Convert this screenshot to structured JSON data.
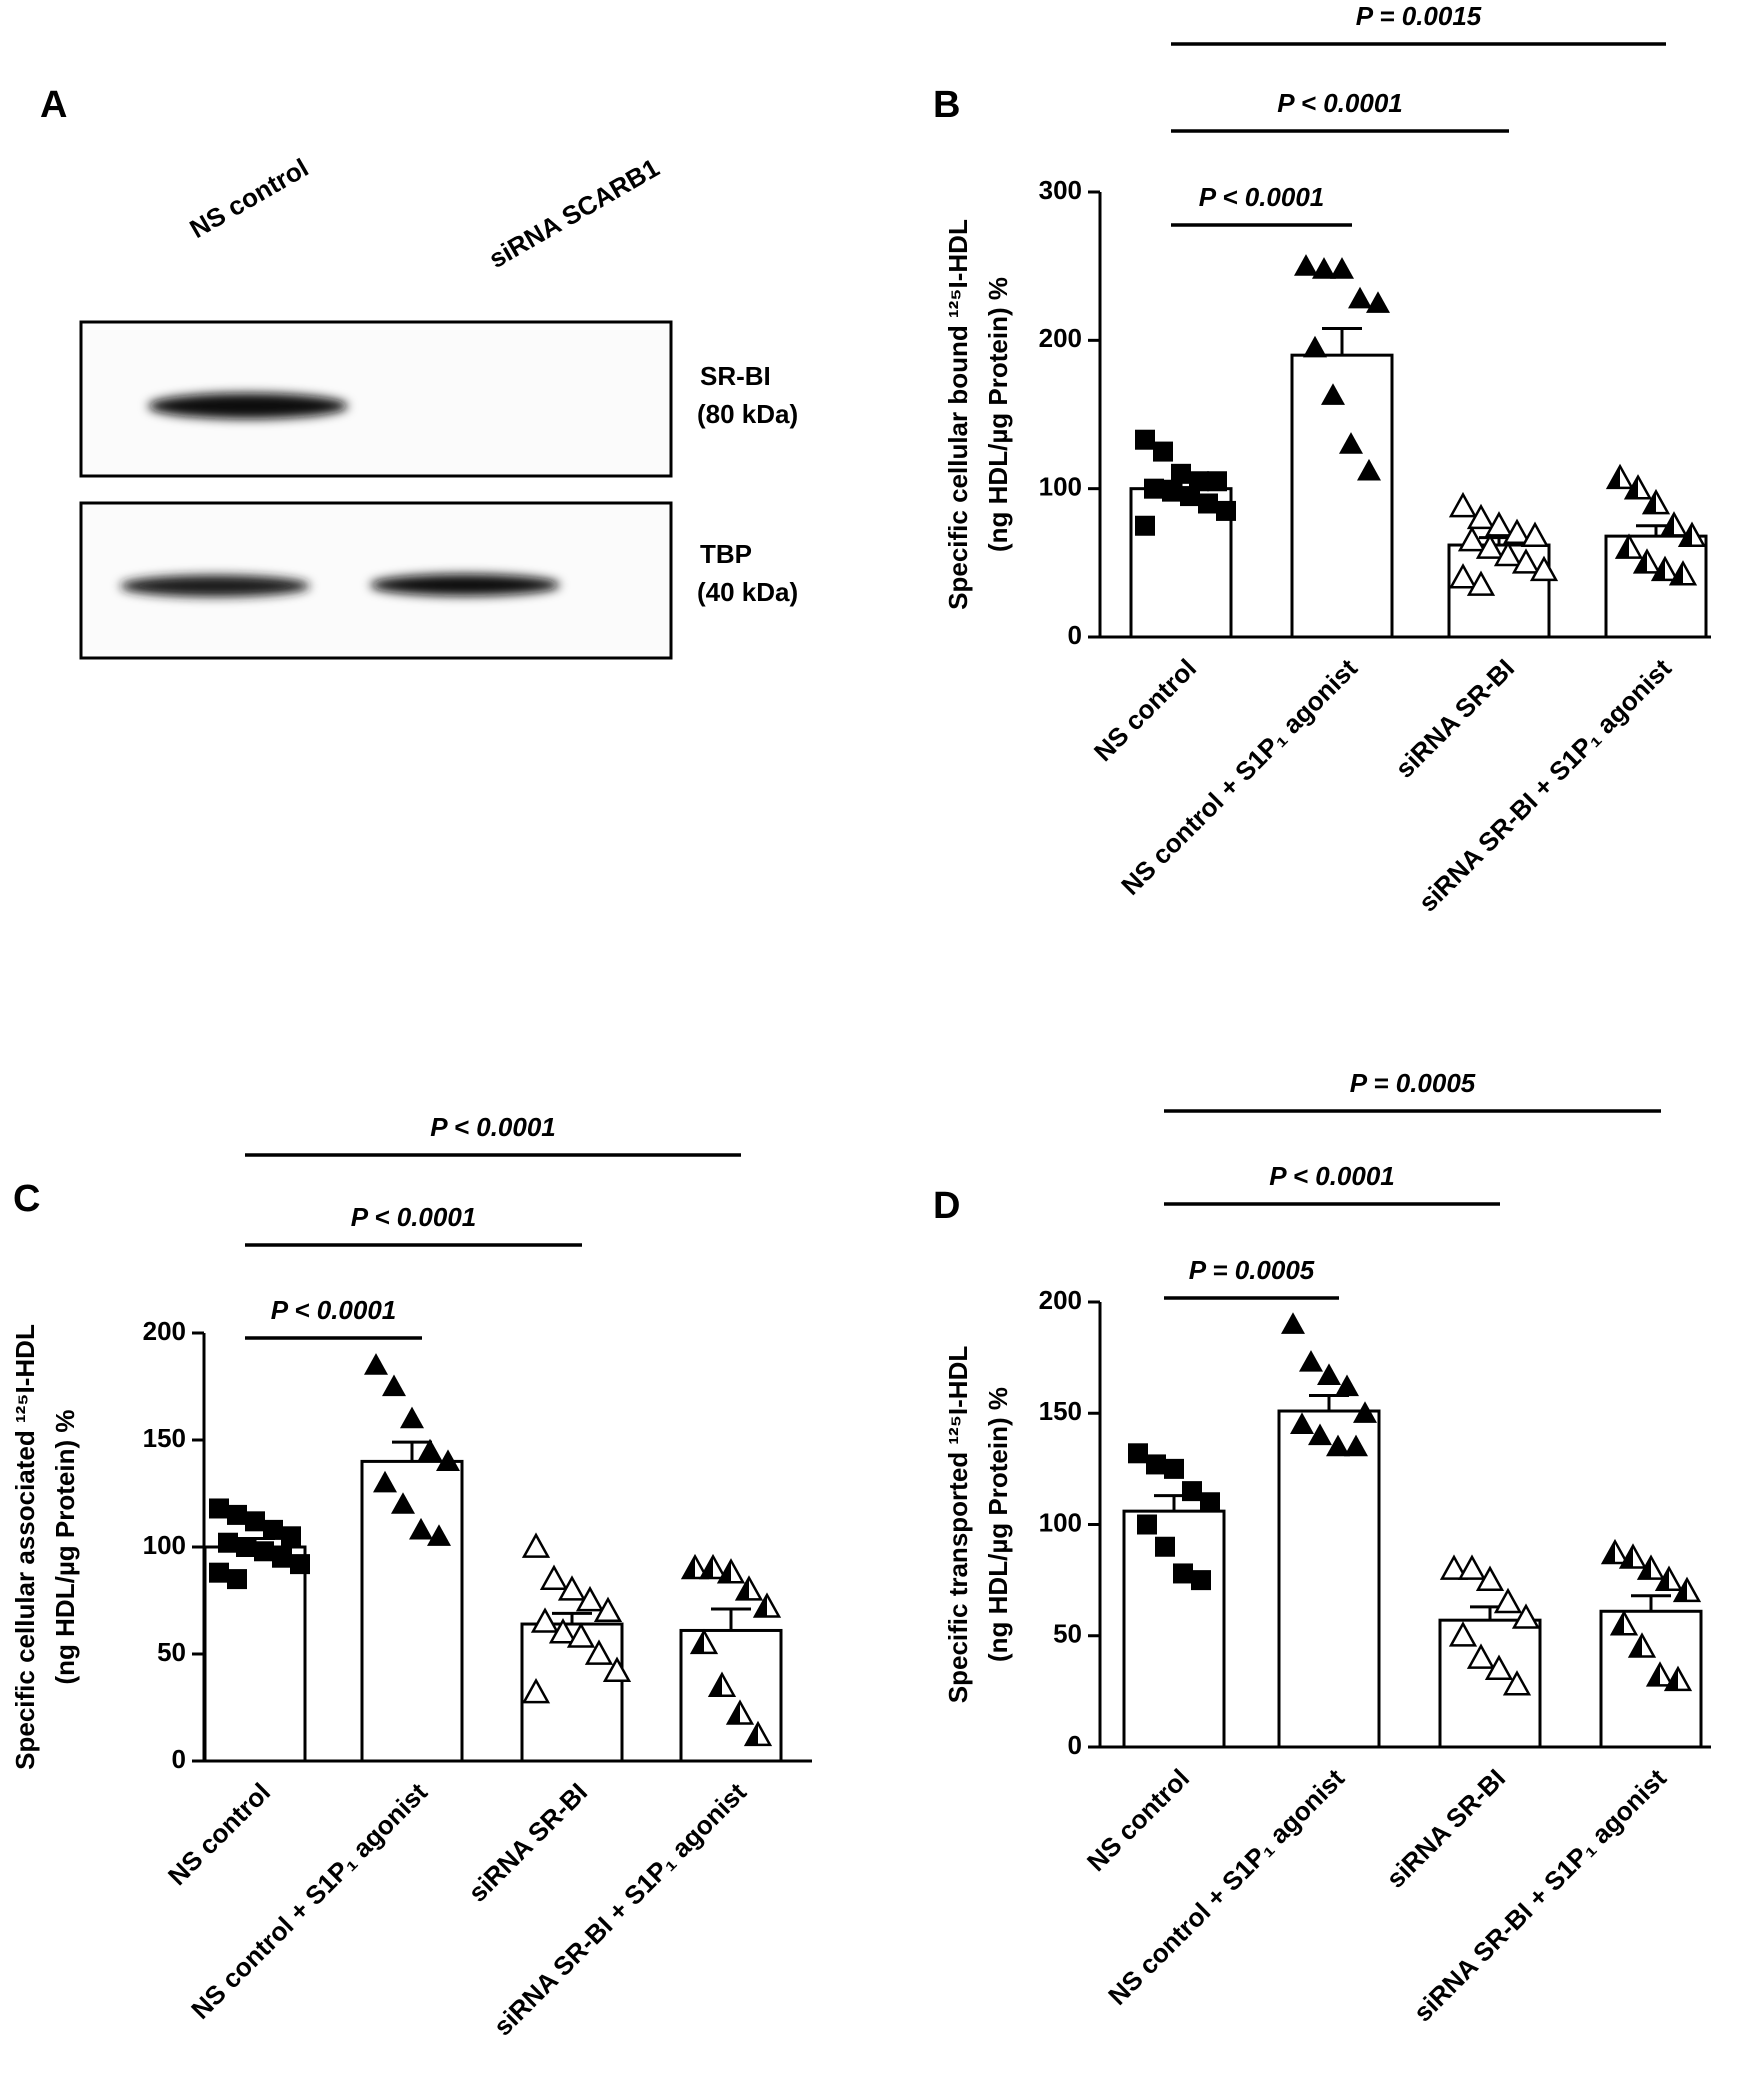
{
  "blot": {
    "panel": "A",
    "lanes": [
      "NS control",
      "siRNA SCARB1"
    ],
    "blots": [
      {
        "label": "SR-BI",
        "size": "(80 kDa)"
      },
      {
        "label": "TBP",
        "size": "(40 kDa)"
      }
    ]
  },
  "chart_data": [
    {
      "type": "bar",
      "panel": "B",
      "ylabel": [
        "Specific cellular bound ¹²⁵I-HDL",
        "(ng HDL/µg Protein) %"
      ],
      "categories": [
        "NS control",
        "NS control + S1P₁ agonist",
        "siRNA SR-BI",
        "siRNA SR-BI + S1P₁ agonist"
      ],
      "values": [
        100,
        190,
        62,
        68
      ],
      "errors": [
        5,
        18,
        5,
        7
      ],
      "points": [
        [
          133,
          125,
          110,
          105,
          105,
          100,
          98,
          95,
          90,
          85,
          75
        ],
        [
          250,
          248,
          248,
          228,
          225,
          195,
          163,
          130,
          112
        ],
        [
          88,
          80,
          75,
          70,
          68,
          65,
          60,
          55,
          50,
          45,
          40,
          35
        ],
        [
          107,
          100,
          90,
          75,
          68,
          60,
          50,
          45,
          42
        ]
      ],
      "markers": [
        "square",
        "triangle",
        "triangle-open",
        "triangle-half"
      ],
      "color": "#000000",
      "ylim": [
        0,
        300
      ],
      "yticks": [
        0,
        100,
        200,
        300
      ],
      "comparisons": [
        {
          "from": "NS control",
          "to": "NS control + S1P₁ agonist",
          "label": "P < 0.0001"
        },
        {
          "from": "NS control",
          "to": "siRNA SR-BI",
          "label": "P < 0.0001"
        },
        {
          "from": "NS control",
          "to": "siRNA SR-BI + S1P₁ agonist",
          "label": "P = 0.0015"
        }
      ]
    },
    {
      "type": "bar",
      "panel": "C",
      "ylabel": [
        "Specific cellular associated ¹²⁵I-HDL",
        "(ng HDL/µg Protein) %"
      ],
      "categories": [
        "NS control",
        "NS control + S1P₁ agonist",
        "siRNA SR-BI",
        "siRNA SR-BI + S1P₁ agonist"
      ],
      "values": [
        100,
        140,
        64,
        61
      ],
      "errors": [
        4,
        9,
        5,
        10
      ],
      "points": [
        [
          118,
          115,
          112,
          108,
          105,
          102,
          100,
          98,
          95,
          92,
          88,
          85
        ],
        [
          185,
          175,
          160,
          145,
          140,
          130,
          120,
          108,
          105
        ],
        [
          100,
          85,
          80,
          75,
          70,
          65,
          60,
          58,
          50,
          42,
          32
        ],
        [
          90,
          90,
          88,
          80,
          72,
          55,
          35,
          22,
          12
        ]
      ],
      "markers": [
        "square",
        "triangle",
        "triangle-open",
        "triangle-half"
      ],
      "color": "#000000",
      "ylim": [
        0,
        200
      ],
      "yticks": [
        0,
        50,
        100,
        150,
        200
      ],
      "comparisons": [
        {
          "from": "NS control",
          "to": "NS control + S1P₁ agonist",
          "label": "P < 0.0001"
        },
        {
          "from": "NS control",
          "to": "siRNA SR-BI",
          "label": "P < 0.0001"
        },
        {
          "from": "NS control",
          "to": "siRNA SR-BI + S1P₁ agonist",
          "label": "P < 0.0001"
        }
      ]
    },
    {
      "type": "bar",
      "panel": "D",
      "ylabel": [
        "Specific transported ¹²⁵I-HDL",
        "(ng HDL/µg Protein) %"
      ],
      "categories": [
        "NS control",
        "NS control + S1P₁ agonist",
        "siRNA SR-BI",
        "siRNA SR-BI + S1P₁ agonist"
      ],
      "values": [
        106,
        151,
        57,
        61
      ],
      "errors": [
        7,
        7,
        6,
        7
      ],
      "points": [
        [
          132,
          127,
          125,
          115,
          110,
          100,
          90,
          78,
          75
        ],
        [
          190,
          173,
          167,
          162,
          150,
          145,
          140,
          135,
          135
        ],
        [
          80,
          80,
          75,
          65,
          58,
          50,
          40,
          35,
          28
        ],
        [
          87,
          85,
          80,
          75,
          70,
          55,
          45,
          32,
          30
        ]
      ],
      "markers": [
        "square",
        "triangle",
        "triangle-open",
        "triangle-half"
      ],
      "color": "#000000",
      "ylim": [
        0,
        200
      ],
      "yticks": [
        0,
        50,
        100,
        150,
        200
      ],
      "comparisons": [
        {
          "from": "NS control",
          "to": "NS control + S1P₁ agonist",
          "label": "P = 0.0005"
        },
        {
          "from": "NS control",
          "to": "siRNA SR-BI",
          "label": "P < 0.0001"
        },
        {
          "from": "NS control",
          "to": "siRNA SR-BI + S1P₁ agonist",
          "label": "P = 0.0005"
        }
      ]
    }
  ]
}
